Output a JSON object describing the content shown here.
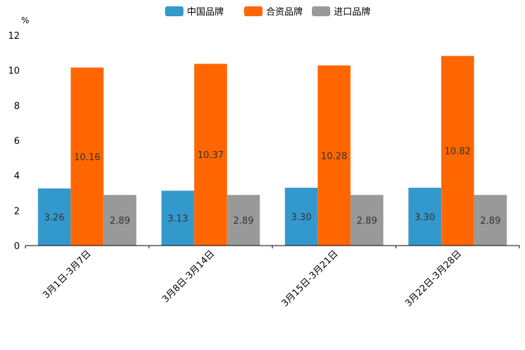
{
  "chart_data": {
    "type": "bar",
    "title": "",
    "xlabel": "",
    "ylabel": "%",
    "ylim": [
      0,
      12
    ],
    "yticks": [
      0,
      2,
      4,
      6,
      8,
      10,
      12
    ],
    "categories": [
      "3月1日-3月7日",
      "3月8日-3月14日",
      "3月15日-3月21日",
      "3月22日-3月28日"
    ],
    "series": [
      {
        "name": "中国品牌",
        "color": "#3399cc",
        "values": [
          3.26,
          3.13,
          3.3,
          3.3
        ],
        "labels": [
          "3.26",
          "3.13",
          "3.30",
          "3.30"
        ]
      },
      {
        "name": "合资品牌",
        "color": "#ff6600",
        "values": [
          10.16,
          10.37,
          10.28,
          10.82
        ],
        "labels": [
          "10.16",
          "10.37",
          "10.28",
          "10.82"
        ]
      },
      {
        "name": "进口品牌",
        "color": "#999999",
        "values": [
          2.89,
          2.89,
          2.89,
          2.89
        ],
        "labels": [
          "2.89",
          "2.89",
          "2.89",
          "2.89"
        ]
      }
    ],
    "legend_position": "top-center",
    "grid": false
  }
}
